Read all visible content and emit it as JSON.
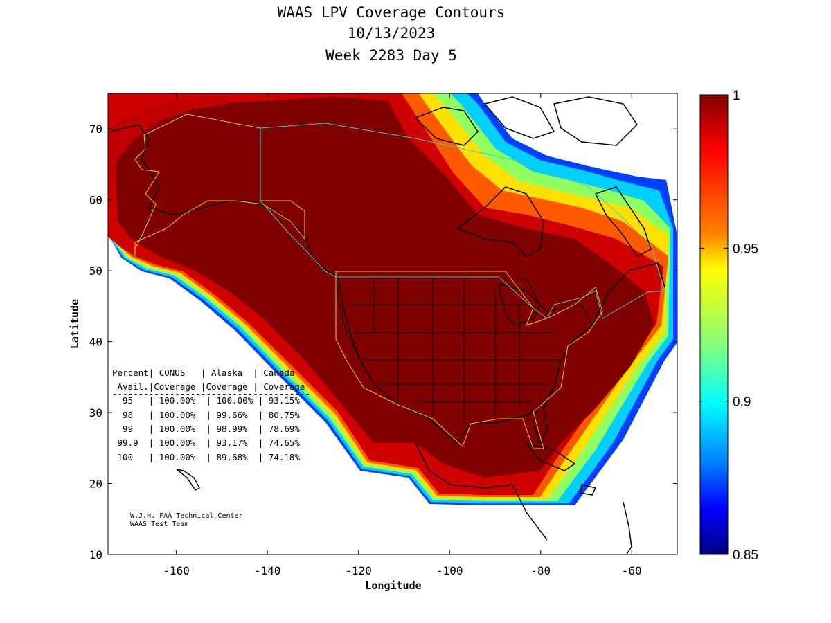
{
  "title_lines": [
    "WAAS LPV Coverage Contours",
    "10/13/2023",
    "Week 2283 Day 5"
  ],
  "axes": {
    "xlabel": "Longitude",
    "ylabel": "Latitude",
    "x_ticks": [
      -160,
      -140,
      -120,
      -100,
      -80,
      -60
    ],
    "y_ticks": [
      10,
      20,
      30,
      40,
      50,
      60,
      70
    ],
    "xlim": [
      -175,
      -50
    ],
    "ylim": [
      10,
      75
    ]
  },
  "colorbar": {
    "ticks": [
      "1",
      "0.95",
      "0.9",
      "0.85"
    ],
    "range": [
      0.85,
      1
    ],
    "colormap": "jet"
  },
  "coverage_table": {
    "header1": "Percent| CONUS   | Alaska  | Canada",
    "header2": " Avail.|Coverage |Coverage | Coverage",
    "divider": "--------------------------------------",
    "rows": [
      "  95   | 100.00%  | 100.00% | 93.15%",
      "  98   | 100.00%  | 99.66%  | 80.75%",
      "  99   | 100.00%  | 98.99%  | 78.69%",
      " 99.9  | 100.00%  | 93.17%  | 74.65%",
      " 100   | 100.00%  | 89.68%  | 74.18%"
    ]
  },
  "credit": [
    "W.J.H. FAA Technical Center",
    "WAAS Test Team"
  ],
  "colors": {
    "coverage_full": "#800000",
    "coverage_high": "#c80000",
    "colorbar_top": "#800000",
    "colorbar_bottom": "#00007f",
    "alaska_boundary": "#e8d000",
    "canada_boundary": "#3cc8d0",
    "coastline": "#000000"
  }
}
